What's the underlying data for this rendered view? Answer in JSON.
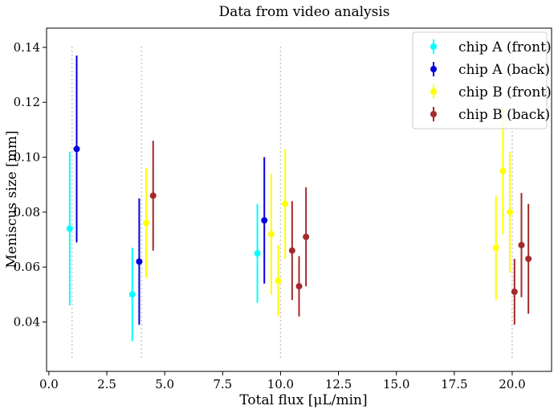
{
  "chart_data": {
    "type": "scatter",
    "title": "Data from video analysis",
    "xlabel": "Total flux [μL/min]",
    "ylabel": "Meniscus size [mm]",
    "xlim": [
      -0.1,
      21.7
    ],
    "ylim": [
      0.022,
      0.147
    ],
    "xticks": [
      0.0,
      2.5,
      5.0,
      7.5,
      10.0,
      12.5,
      15.0,
      17.5,
      20.0
    ],
    "xtick_labels": [
      "0.0",
      "2.5",
      "5.0",
      "7.5",
      "10.0",
      "12.5",
      "15.0",
      "17.5",
      "20.0"
    ],
    "yticks": [
      0.04,
      0.06,
      0.08,
      0.1,
      0.12,
      0.14
    ],
    "ytick_labels": [
      "0.04",
      "0.06",
      "0.08",
      "0.10",
      "0.12",
      "0.14"
    ],
    "grid": false,
    "legend_position": "top-right",
    "reference_lines": {
      "x": [
        1.0,
        4.0,
        10.0,
        20.0
      ],
      "ymin": 0.027,
      "ymax": 0.141,
      "color": "#c8c8c8"
    },
    "series": [
      {
        "name": "chip A (front)",
        "color": "#00ffff",
        "points": [
          {
            "x": 0.9,
            "y": 0.074,
            "yerr": 0.028
          },
          {
            "x": 3.6,
            "y": 0.05,
            "yerr": 0.017
          },
          {
            "x": 9.0,
            "y": 0.065,
            "yerr": 0.018
          }
        ]
      },
      {
        "name": "chip A (back)",
        "color": "#0000dd",
        "points": [
          {
            "x": 1.2,
            "y": 0.103,
            "yerr": 0.034
          },
          {
            "x": 3.9,
            "y": 0.062,
            "yerr": 0.023
          },
          {
            "x": 9.3,
            "y": 0.077,
            "yerr": 0.023
          }
        ]
      },
      {
        "name": "chip B (front)",
        "color": "#ffff00",
        "points": [
          {
            "x": 4.2,
            "y": 0.076,
            "yerr": 0.02
          },
          {
            "x": 9.6,
            "y": 0.072,
            "yerr": 0.022
          },
          {
            "x": 9.9,
            "y": 0.055,
            "yerr": 0.013
          },
          {
            "x": 10.2,
            "y": 0.083,
            "yerr": 0.02
          },
          {
            "x": 19.3,
            "y": 0.067,
            "yerr": 0.019
          },
          {
            "x": 19.6,
            "y": 0.095,
            "yerr": 0.023
          },
          {
            "x": 19.9,
            "y": 0.08,
            "yerr": 0.022
          }
        ]
      },
      {
        "name": "chip B (back)",
        "color": "#a52a2a",
        "points": [
          {
            "x": 4.5,
            "y": 0.086,
            "yerr": 0.02
          },
          {
            "x": 10.5,
            "y": 0.066,
            "yerr": 0.018
          },
          {
            "x": 10.8,
            "y": 0.053,
            "yerr": 0.011
          },
          {
            "x": 11.1,
            "y": 0.071,
            "yerr": 0.018
          },
          {
            "x": 20.1,
            "y": 0.051,
            "yerr": 0.012
          },
          {
            "x": 20.4,
            "y": 0.068,
            "yerr": 0.019
          },
          {
            "x": 20.7,
            "y": 0.063,
            "yerr": 0.02
          }
        ]
      }
    ]
  }
}
